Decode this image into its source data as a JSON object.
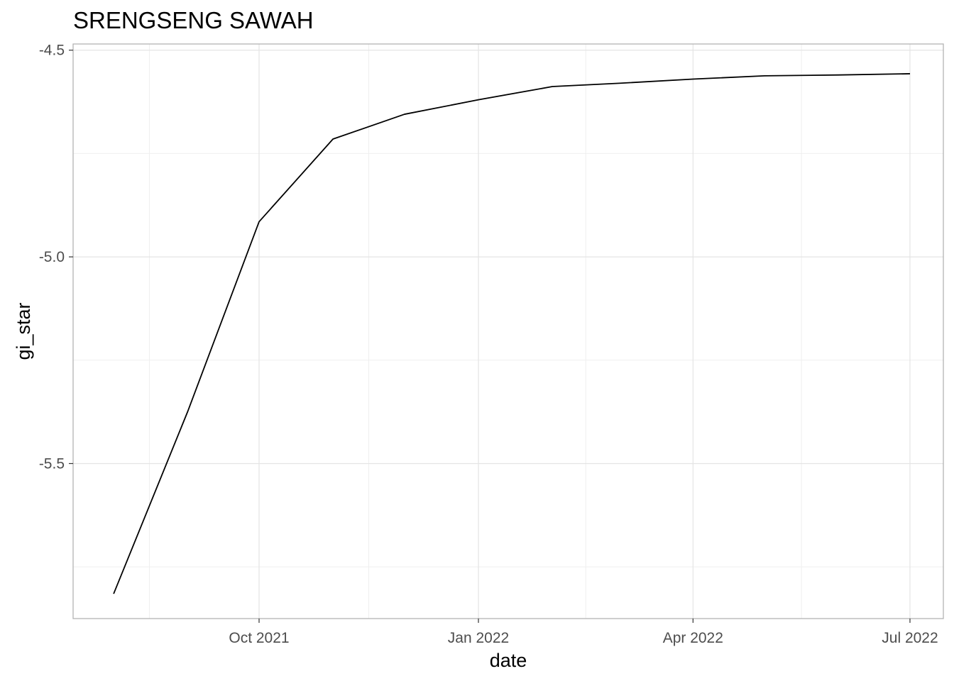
{
  "chart_data": {
    "type": "line",
    "title": "SRENGSENG SAWAH",
    "xlabel": "date",
    "ylabel": "gi_star",
    "x_tick_labels": [
      {
        "date": "2021-10-01",
        "label": "Oct 2021"
      },
      {
        "date": "2022-01-01",
        "label": "Jan 2022"
      },
      {
        "date": "2022-04-01",
        "label": "Apr 2022"
      },
      {
        "date": "2022-07-01",
        "label": "Jul 2022"
      }
    ],
    "y_tick_labels": [
      {
        "value": -4.5,
        "label": "-4.5"
      },
      {
        "value": -5.0,
        "label": "-5.0"
      },
      {
        "value": -5.5,
        "label": "-5.5"
      }
    ],
    "xlim": [
      "2021-07-15",
      "2022-07-15"
    ],
    "ylim": [
      -5.875,
      -4.485
    ],
    "grid": true,
    "series": [
      {
        "color": "#000000",
        "points": [
          {
            "x": "2021-08-01",
            "y": -5.815
          },
          {
            "x": "2021-09-01",
            "y": -5.375
          },
          {
            "x": "2021-10-01",
            "y": -4.915
          },
          {
            "x": "2021-11-01",
            "y": -4.715
          },
          {
            "x": "2021-12-01",
            "y": -4.655
          },
          {
            "x": "2022-01-01",
            "y": -4.62
          },
          {
            "x": "2022-02-01",
            "y": -4.588
          },
          {
            "x": "2022-03-01",
            "y": -4.58
          },
          {
            "x": "2022-04-01",
            "y": -4.57
          },
          {
            "x": "2022-05-01",
            "y": -4.562
          },
          {
            "x": "2022-06-01",
            "y": -4.56
          },
          {
            "x": "2022-07-01",
            "y": -4.557
          }
        ]
      }
    ]
  }
}
